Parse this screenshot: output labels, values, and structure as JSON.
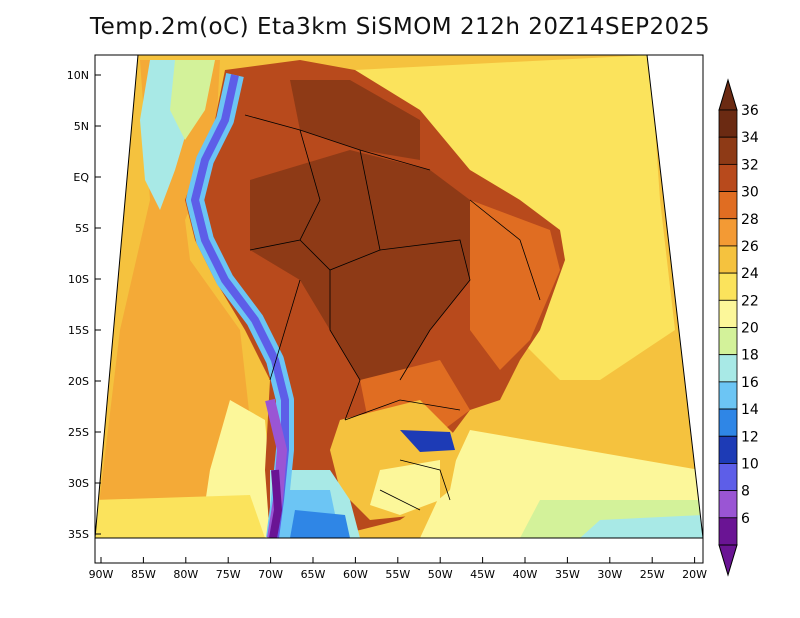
{
  "title": "Temp.2m(oC) Eta3km SiSMOM 212h 20Z14SEP2025",
  "map": {
    "lat_labels": [
      "10N",
      "5N",
      "EQ",
      "5S",
      "10S",
      "15S",
      "20S",
      "25S",
      "30S",
      "35S"
    ],
    "lon_labels": [
      "90W",
      "85W",
      "80W",
      "75W",
      "70W",
      "65W",
      "60W",
      "55W",
      "50W",
      "45W",
      "40W",
      "35W",
      "30W",
      "25W",
      "20W"
    ]
  },
  "colorbar": {
    "labels": [
      "36",
      "34",
      "32",
      "30",
      "28",
      "26",
      "24",
      "22",
      "20",
      "18",
      "16",
      "14",
      "12",
      "10",
      "8",
      "6"
    ],
    "colors": [
      "#6b2a12",
      "#8e3a16",
      "#b84a1c",
      "#e06d22",
      "#f39a34",
      "#f5c23e",
      "#fbe35c",
      "#fcf79a",
      "#d3f29a",
      "#a8e9e6",
      "#6cc5f4",
      "#2f86e6",
      "#1d3bb6",
      "#5d5ee8",
      "#9a55d4",
      "#6a1494"
    ]
  }
}
